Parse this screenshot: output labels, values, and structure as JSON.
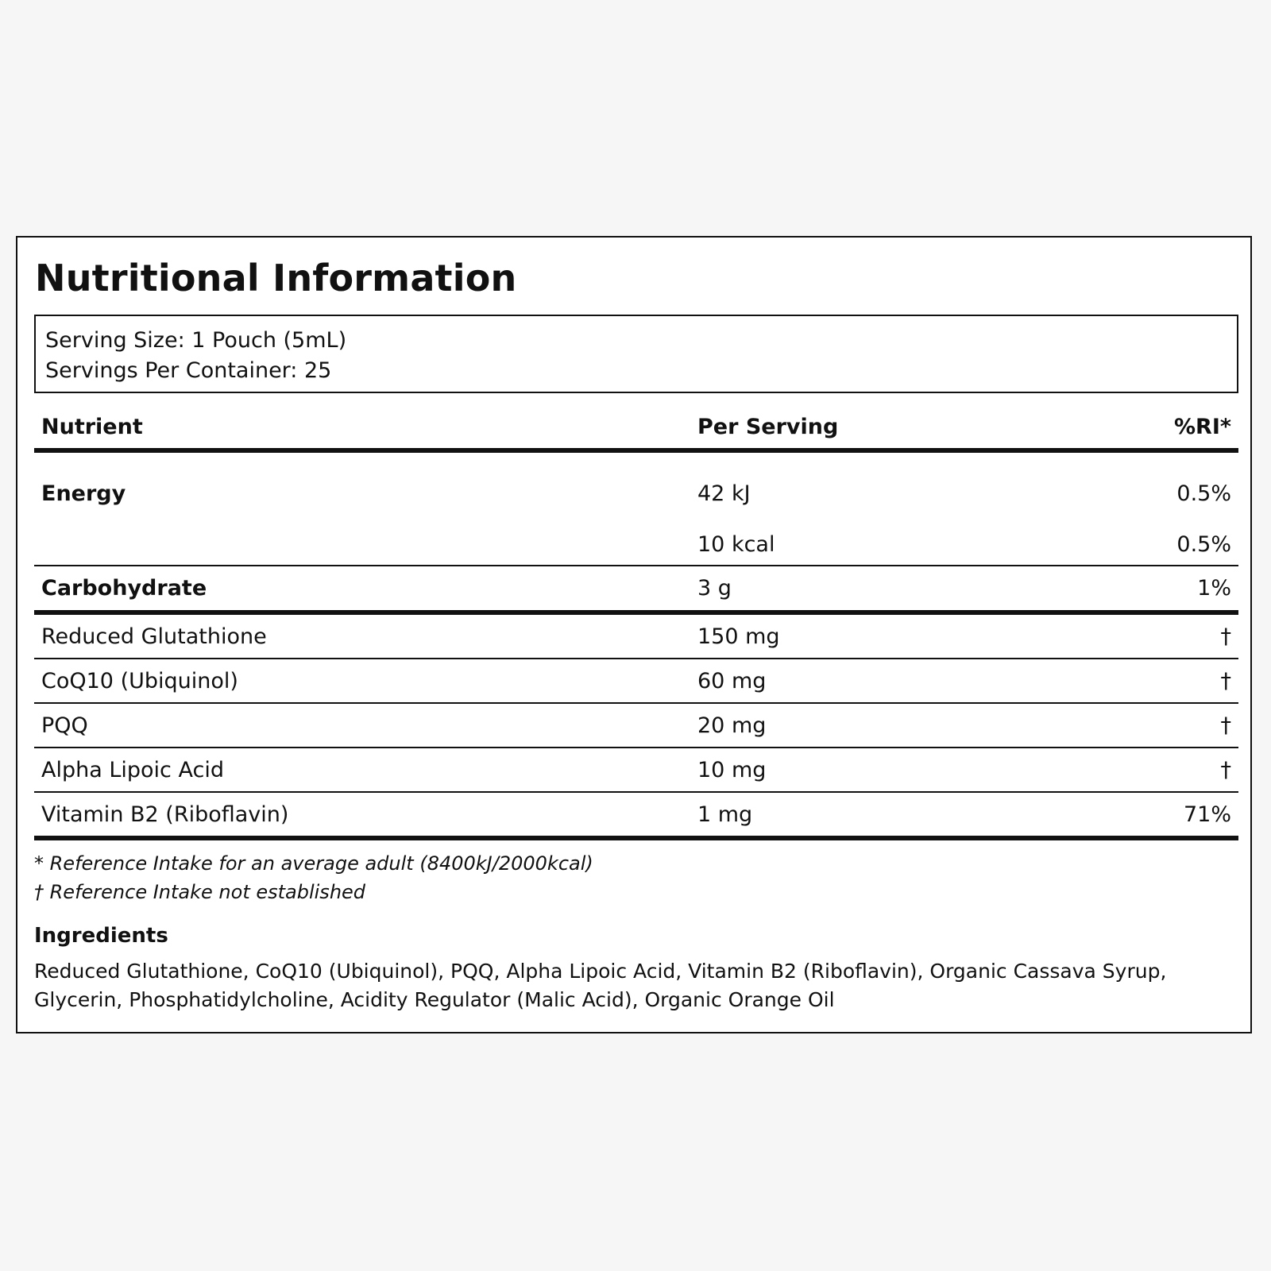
{
  "label": {
    "title": "Nutritional Information",
    "serving_size": "Serving Size: 1 Pouch (5mL)",
    "servings_per_container": "Servings Per Container: 25"
  },
  "table": {
    "headers": {
      "nutrient": "Nutrient",
      "per_serving": "Per Serving",
      "ri": "%RI*"
    },
    "rows": [
      {
        "name": "Energy",
        "amount": "42 kJ",
        "ri": "0.5%"
      },
      {
        "name": "",
        "amount": "10 kcal",
        "ri": "0.5%"
      },
      {
        "name": "Carbohydrate",
        "amount": "3 g",
        "ri": "1%"
      },
      {
        "name": "Reduced Glutathione",
        "amount": "150 mg",
        "ri": "†"
      },
      {
        "name": "CoQ10 (Ubiquinol)",
        "amount": "60 mg",
        "ri": "†"
      },
      {
        "name": "PQQ",
        "amount": "20 mg",
        "ri": "†"
      },
      {
        "name": "Alpha Lipoic Acid",
        "amount": "10 mg",
        "ri": "†"
      },
      {
        "name": "Vitamin B2 (Riboflavin)",
        "amount": "1 mg",
        "ri": "71%"
      }
    ]
  },
  "footnotes": {
    "reference_intake": "* Reference Intake for an average adult (8400kJ/2000kcal)",
    "not_established": "† Reference Intake not established"
  },
  "ingredients": {
    "heading": "Ingredients",
    "text": "Reduced Glutathione, CoQ10 (Ubiquinol), PQQ, Alpha Lipoic Acid, Vitamin B2 (Riboflavin), Organic Cassava Syrup, Glycerin, Phosphatidylcholine, Acidity Regulator (Malic Acid), Organic Orange Oil"
  },
  "colors": {
    "page_background": "#f6f6f6",
    "panel_background": "#ffffff",
    "text_and_rules": "#111111"
  }
}
